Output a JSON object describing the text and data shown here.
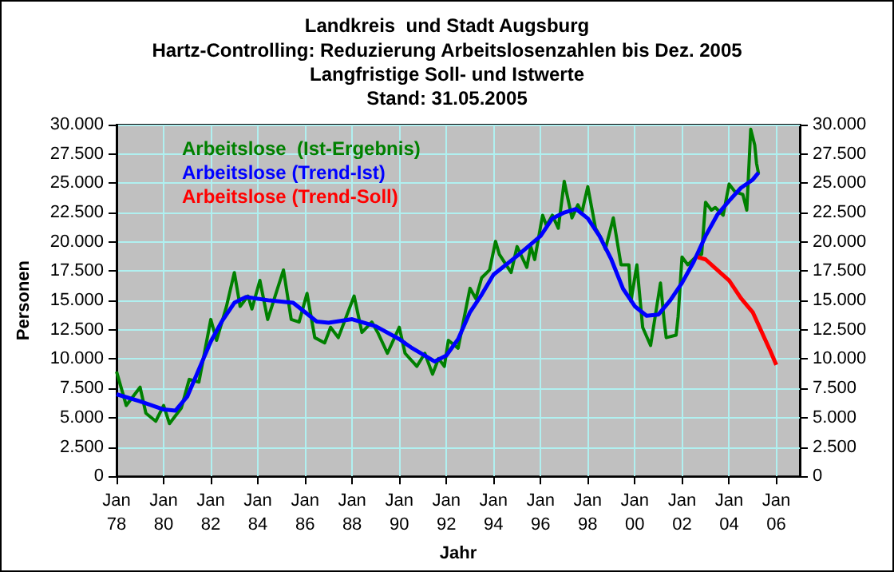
{
  "chart_data": {
    "type": "line",
    "title": "Landkreis  und Stadt Augsburg",
    "subtitle": "Hartz-Controlling: Reduzierung Arbeitslosenzahlen bis Dez. 2005\nLangfristige Soll- und Istwerte\nStand: 31.05.2005",
    "xlabel": "Jahr",
    "ylabel": "Personen",
    "xlim": [
      "1978-01",
      "2007-01"
    ],
    "xticks": [
      {
        "value": "1978-01",
        "label": "Jan\n78"
      },
      {
        "value": "1980-01",
        "label": "Jan\n80"
      },
      {
        "value": "1982-01",
        "label": "Jan\n82"
      },
      {
        "value": "1984-01",
        "label": "Jan\n84"
      },
      {
        "value": "1986-01",
        "label": "Jan\n86"
      },
      {
        "value": "1988-01",
        "label": "Jan\n88"
      },
      {
        "value": "1990-01",
        "label": "Jan\n90"
      },
      {
        "value": "1992-01",
        "label": "Jan\n92"
      },
      {
        "value": "1994-01",
        "label": "Jan\n94"
      },
      {
        "value": "1996-01",
        "label": "Jan\n96"
      },
      {
        "value": "1998-01",
        "label": "Jan\n98"
      },
      {
        "value": "2000-01",
        "label": "Jan\n00"
      },
      {
        "value": "2002-01",
        "label": "Jan\n02"
      },
      {
        "value": "2004-01",
        "label": "Jan\n04"
      },
      {
        "value": "2006-01",
        "label": "Jan\n06"
      }
    ],
    "ylim": [
      0,
      30000
    ],
    "yticks": [
      0,
      {
        "value": 2500,
        "label": "2.500"
      },
      {
        "value": 5000,
        "label": "5.000"
      },
      {
        "value": 7500,
        "label": "7.500"
      },
      {
        "value": 10000,
        "label": "10.000"
      },
      {
        "value": 12500,
        "label": "12.500"
      },
      {
        "value": 15000,
        "label": "15.000"
      },
      {
        "value": 17500,
        "label": "17.500"
      },
      {
        "value": 20000,
        "label": "20.000"
      },
      {
        "value": 22500,
        "label": "22.500"
      },
      {
        "value": 25000,
        "label": "25.000"
      },
      {
        "value": 27500,
        "label": "27.500"
      },
      {
        "value": 30000,
        "label": "30.000"
      }
    ],
    "y2lim": [
      0,
      30000
    ],
    "y2ticks": [
      0,
      {
        "value": 2500,
        "label": "2.500"
      },
      {
        "value": 5000,
        "label": "5.000"
      },
      {
        "value": 7500,
        "label": "7.500"
      },
      {
        "value": 10000,
        "label": "10.000"
      },
      {
        "value": 12500,
        "label": "12.500"
      },
      {
        "value": 15000,
        "label": "15.000"
      },
      {
        "value": 17500,
        "label": "17.500"
      },
      {
        "value": 20000,
        "label": "20.000"
      },
      {
        "value": 22500,
        "label": "22.500"
      },
      {
        "value": 25000,
        "label": "25.000"
      },
      {
        "value": 27500,
        "label": "27.500"
      },
      {
        "value": 30000,
        "label": "30.000"
      }
    ],
    "grid": true,
    "legend": "top left",
    "marker": "none",
    "line_style": "solid",
    "series": [
      {
        "name": "Arbeitslose  (Ist-Ergebnis)",
        "color": "#008000",
        "x": [
          "1978-01",
          "1978-06",
          "1979-01",
          "1979-04",
          "1979-09",
          "1980-01",
          "1980-04",
          "1980-10",
          "1981-02",
          "1981-07",
          "1982-01",
          "1982-04",
          "1982-09",
          "1983-01",
          "1983-04",
          "1983-08",
          "1983-10",
          "1984-02",
          "1984-06",
          "1985-02",
          "1985-06",
          "1985-10",
          "1986-02",
          "1986-06",
          "1986-11",
          "1987-02",
          "1987-06",
          "1988-02",
          "1988-06",
          "1988-11",
          "1989-02",
          "1989-07",
          "1990-01",
          "1990-04",
          "1990-10",
          "1991-02",
          "1991-06",
          "1991-09",
          "1991-12",
          "1992-02",
          "1992-07",
          "1993-01",
          "1993-04",
          "1993-07",
          "1993-11",
          "1994-02",
          "1994-04",
          "1994-10",
          "1995-01",
          "1995-06",
          "1995-08",
          "1995-10",
          "1996-02",
          "1996-04",
          "1996-07",
          "1996-10",
          "1997-01",
          "1997-05",
          "1997-08",
          "1997-10",
          "1998-01",
          "1998-05",
          "1998-08",
          "1998-10",
          "1999-02",
          "1999-06",
          "1999-10",
          "1999-11",
          "2000-02",
          "2000-05",
          "2000-09",
          "2001-02",
          "2001-04",
          "2001-05",
          "2001-10",
          "2001-11",
          "2002-01",
          "2002-04",
          "2002-08",
          "2002-11",
          "2003-01",
          "2003-04",
          "2003-06",
          "2003-10",
          "2004-01",
          "2004-04",
          "2004-08",
          "2004-10",
          "2004-12",
          "2005-02",
          "2005-03",
          "2005-04"
        ],
        "values": [
          8930,
          6040,
          7600,
          5380,
          4700,
          6040,
          4490,
          5820,
          8270,
          8040,
          13380,
          11600,
          14490,
          17380,
          14490,
          15380,
          14270,
          16710,
          13380,
          17600,
          13380,
          13160,
          15600,
          11830,
          11380,
          12710,
          11830,
          15380,
          12270,
          13160,
          12270,
          10490,
          12710,
          10490,
          9380,
          10490,
          8710,
          10040,
          9380,
          11600,
          10930,
          16040,
          15150,
          16930,
          17600,
          20040,
          18930,
          17380,
          19600,
          17820,
          19600,
          18490,
          22270,
          21380,
          22270,
          21160,
          25160,
          22040,
          23160,
          22490,
          24710,
          21160,
          20270,
          19380,
          22040,
          18040,
          18040,
          14930,
          18040,
          12710,
          11160,
          16490,
          13160,
          11830,
          12040,
          13600,
          18710,
          18040,
          18710,
          18930,
          23380,
          22710,
          22930,
          22270,
          24930,
          24270,
          24040,
          22710,
          29600,
          28270,
          26710,
          25820
        ]
      },
      {
        "name": "Arbeitslose (Trend-Ist)",
        "color": "#0000ff",
        "x": [
          "1978-01",
          "1979-01",
          "1980-01",
          "1980-07",
          "1981-01",
          "1982-01",
          "1982-07",
          "1983-01",
          "1983-07",
          "1984-07",
          "1985-07",
          "1986-01",
          "1986-07",
          "1987-01",
          "1988-01",
          "1989-01",
          "1990-01",
          "1990-07",
          "1991-01",
          "1991-07",
          "1992-01",
          "1992-07",
          "1993-01",
          "1993-07",
          "1994-01",
          "1995-01",
          "1996-01",
          "1996-07",
          "1997-01",
          "1997-07",
          "1998-01",
          "1998-07",
          "1999-01",
          "1999-07",
          "2000-01",
          "2000-07",
          "2001-01",
          "2001-07",
          "2002-01",
          "2002-07",
          "2003-01",
          "2003-07",
          "2004-01",
          "2004-07",
          "2005-01",
          "2005-04"
        ],
        "values": [
          7000,
          6400,
          5700,
          5600,
          6800,
          11500,
          13300,
          14800,
          15300,
          15000,
          14800,
          14000,
          13200,
          13100,
          13400,
          12800,
          11700,
          11000,
          10400,
          9800,
          10300,
          11700,
          14000,
          15500,
          17200,
          18800,
          20500,
          22000,
          22500,
          22800,
          22000,
          20500,
          18500,
          16000,
          14500,
          13700,
          13800,
          15000,
          16500,
          18300,
          20500,
          22300,
          23500,
          24600,
          25300,
          25900
        ]
      },
      {
        "name": "Arbeitslose (Trend-Soll)",
        "color": "#ff0000",
        "x": [
          "2002-09",
          "2003-01",
          "2003-07",
          "2004-01",
          "2004-07",
          "2005-01",
          "2005-07",
          "2005-10",
          "2006-01"
        ],
        "values": [
          18700,
          18500,
          17600,
          16700,
          15200,
          14000,
          11800,
          10700,
          9500
        ]
      }
    ]
  }
}
